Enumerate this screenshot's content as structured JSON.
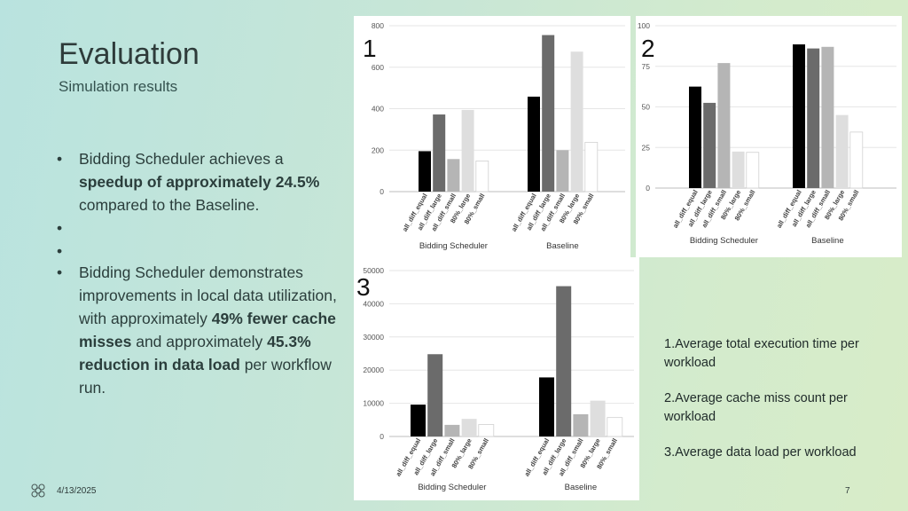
{
  "slide": {
    "title": "Evaluation",
    "subtitle": "Simulation results",
    "bullet1": {
      "pre": "Bidding Scheduler achieves a ",
      "bold1": "speedup of approximately 24.5%",
      "post": " compared to the Baseline."
    },
    "bullet2": {
      "pre": "Bidding Scheduler demonstrates improvements in local data utilization, with approximately ",
      "bold1": "49% fewer cache misses",
      "mid": " and approximately ",
      "bold2": "45.3% reduction in data load",
      "post": " per workflow run."
    },
    "legend": [
      "1.Average total execution time per workload",
      "2.Average cache miss count per workload",
      "3.Average data load per workload"
    ],
    "date": "4/13/2025",
    "page_number": "7"
  },
  "chart_data": [
    {
      "type": "bar",
      "number_label": "1",
      "groups": [
        "Bidding Scheduler",
        "Baseline"
      ],
      "bar_labels": [
        "all_diff_equal",
        "all_diff_large",
        "all_diff_small",
        "80%_large",
        "80%_small"
      ],
      "values": [
        [
          195,
          372,
          157,
          394,
          148
        ],
        [
          458,
          755,
          200,
          675,
          238
        ]
      ],
      "ylim": [
        0,
        800
      ],
      "yticks": [
        0,
        200,
        400,
        600,
        800
      ],
      "bar_colors": [
        "#000000",
        "#6b6b6b",
        "#b5b5b5",
        "#dedede",
        "#ffffff"
      ],
      "grid": true
    },
    {
      "type": "bar",
      "number_label": "2",
      "groups": [
        "Bidding Scheduler",
        "Baseline"
      ],
      "bar_labels": [
        "all_diff_equal",
        "all_diff_large",
        "all_diff_small",
        "80%_large",
        "80%_small"
      ],
      "values": [
        [
          62.5,
          52.5,
          77,
          22.5,
          22
        ],
        [
          88.5,
          86,
          87,
          45,
          34.5
        ]
      ],
      "ylim": [
        0,
        100
      ],
      "yticks": [
        0,
        25,
        50,
        75,
        100
      ],
      "bar_colors": [
        "#000000",
        "#6b6b6b",
        "#b5b5b5",
        "#dedede",
        "#ffffff"
      ],
      "grid": true
    },
    {
      "type": "bar",
      "number_label": "3",
      "groups": [
        "Bidding Scheduler",
        "Baseline"
      ],
      "bar_labels": [
        "all_diff_equal",
        "all_diff_large",
        "all_diff_small",
        "80%_large",
        "80%_small"
      ],
      "values": [
        [
          9600,
          24800,
          3500,
          5300,
          3600
        ],
        [
          17800,
          45300,
          6700,
          10800,
          5700
        ]
      ],
      "ylim": [
        0,
        50000
      ],
      "yticks": [
        0,
        10000,
        20000,
        30000,
        40000,
        50000
      ],
      "bar_colors": [
        "#000000",
        "#6b6b6b",
        "#b5b5b5",
        "#dedede",
        "#ffffff"
      ],
      "grid": true
    }
  ]
}
